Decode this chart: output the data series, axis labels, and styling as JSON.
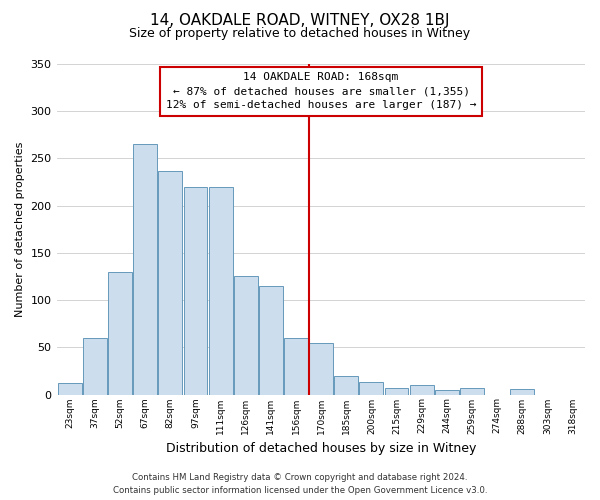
{
  "title": "14, OAKDALE ROAD, WITNEY, OX28 1BJ",
  "subtitle": "Size of property relative to detached houses in Witney",
  "xlabel": "Distribution of detached houses by size in Witney",
  "ylabel": "Number of detached properties",
  "bar_labels": [
    "23sqm",
    "37sqm",
    "52sqm",
    "67sqm",
    "82sqm",
    "97sqm",
    "111sqm",
    "126sqm",
    "141sqm",
    "156sqm",
    "170sqm",
    "185sqm",
    "200sqm",
    "215sqm",
    "229sqm",
    "244sqm",
    "259sqm",
    "274sqm",
    "288sqm",
    "303sqm",
    "318sqm"
  ],
  "bar_values": [
    12,
    60,
    130,
    265,
    237,
    220,
    220,
    125,
    115,
    60,
    55,
    20,
    13,
    7,
    10,
    5,
    7,
    0,
    6,
    0,
    0
  ],
  "bar_color": "#ccdded",
  "bar_edge_color": "#6699bb",
  "ylim": [
    0,
    350
  ],
  "yticks": [
    0,
    50,
    100,
    150,
    200,
    250,
    300,
    350
  ],
  "vline_color": "#cc0000",
  "annotation_title": "14 OAKDALE ROAD: 168sqm",
  "annotation_line1": "← 87% of detached houses are smaller (1,355)",
  "annotation_line2": "12% of semi-detached houses are larger (187) →",
  "annotation_box_color": "#ffffff",
  "annotation_box_edge": "#cc0000",
  "footer_line1": "Contains HM Land Registry data © Crown copyright and database right 2024.",
  "footer_line2": "Contains public sector information licensed under the Open Government Licence v3.0.",
  "background_color": "#ffffff",
  "grid_color": "#cccccc"
}
